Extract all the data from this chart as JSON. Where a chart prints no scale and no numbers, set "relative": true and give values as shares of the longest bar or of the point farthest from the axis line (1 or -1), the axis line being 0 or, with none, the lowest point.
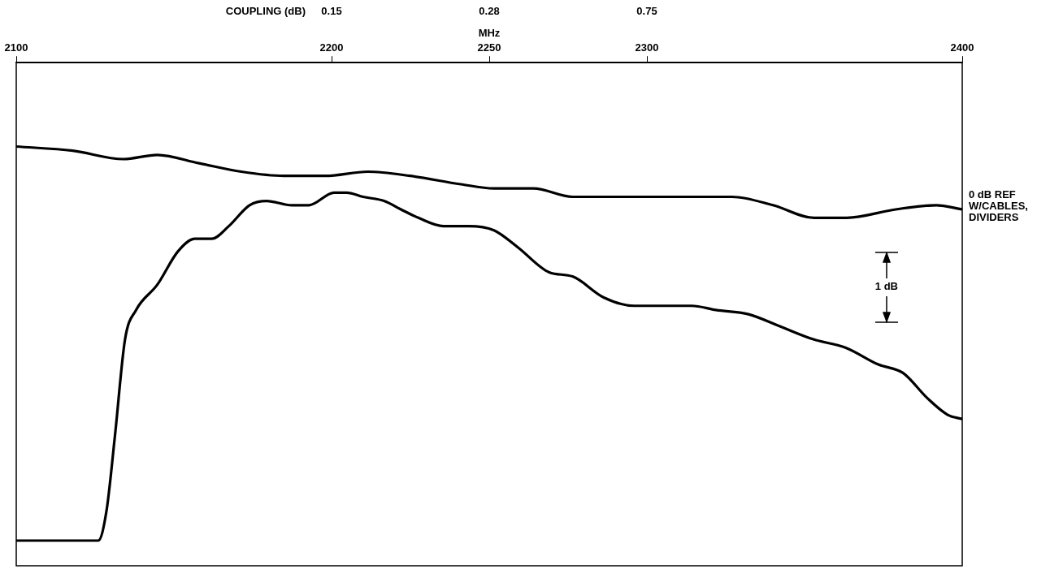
{
  "chart_data": {
    "type": "line",
    "relative": true,
    "xlabel": "MHz",
    "xlim": [
      2100,
      2400
    ],
    "xticks": [
      2100,
      2200,
      2250,
      2300,
      2400
    ],
    "marker": "none",
    "line_style": "solid",
    "legend": false,
    "grid": false,
    "series": [
      {
        "color": "#000000",
        "x": [
          2100,
          2117.9,
          2134,
          2144.7,
          2158,
          2171.4,
          2184.8,
          2198,
          2211.5,
          2224.9,
          2241,
          2251.5,
          2264,
          2276.4,
          2301.3,
          2314.2,
          2327,
          2340,
          2353,
          2363.4,
          2378.9,
          2391.8,
          2400
        ],
        "values": [
          1,
          0.99,
          0.97,
          0.98,
          0.96,
          0.94,
          0.93,
          0.93,
          0.94,
          0.93,
          0.91,
          0.9,
          0.9,
          0.88,
          0.88,
          0.88,
          0.88,
          0.86,
          0.83,
          0.83,
          0.85,
          0.86,
          0.85
        ]
      },
      {
        "color": "#000000",
        "x": [
          2100,
          2126,
          2128.6,
          2131.3,
          2134.5,
          2138,
          2144.7,
          2151.3,
          2156.7,
          2162,
          2167.4,
          2174,
          2179.4,
          2187.4,
          2192.8,
          2200.8,
          2204.8,
          2210,
          2216.8,
          2222,
          2227.5,
          2235.5,
          2243.5,
          2251.5,
          2259,
          2269,
          2276.4,
          2286.3,
          2296,
          2306.4,
          2314.2,
          2321.9,
          2332.2,
          2342.5,
          2352.8,
          2363.1,
          2373.4,
          2381.2,
          2388.9,
          2395.4,
          2400
        ],
        "values": [
          0.06,
          0.06,
          0.13,
          0.31,
          0.54,
          0.61,
          0.67,
          0.75,
          0.78,
          0.78,
          0.81,
          0.86,
          0.87,
          0.86,
          0.86,
          0.89,
          0.89,
          0.88,
          0.87,
          0.85,
          0.83,
          0.81,
          0.81,
          0.8,
          0.76,
          0.7,
          0.69,
          0.64,
          0.62,
          0.62,
          0.62,
          0.61,
          0.6,
          0.57,
          0.54,
          0.52,
          0.48,
          0.46,
          0.4,
          0.36,
          0.35
        ]
      }
    ],
    "annotations": [
      "COUPLING (dB)",
      "0.15",
      "0.28",
      "0.75",
      {
        "text": "0 dB REF\nW/CABLES,\nDIVIDERS",
        "x": 2400,
        "y": 0.85
      },
      {
        "text": "1 dB",
        "x": 2376,
        "y": 0.665
      }
    ]
  }
}
